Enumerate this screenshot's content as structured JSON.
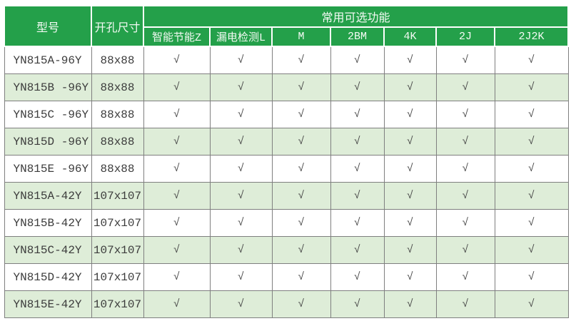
{
  "colors": {
    "header_green": "#24a04a",
    "row_alt_green": "#deedd8",
    "row_white": "#ffffff",
    "border_gray": "#7f7f7f",
    "header_text": "#f4faf4",
    "body_text": "#3c3c3c"
  },
  "table": {
    "header": {
      "model_label": "型号",
      "hole_size_label": "开孔尺寸",
      "features_group_label": "常用可选功能",
      "feature_columns": [
        "智能节能Z",
        "漏电检测L",
        "M",
        "2BM",
        "4K",
        "2J",
        "2J2K"
      ]
    },
    "check_symbol": "√",
    "rows": [
      {
        "model": "YN815A-96Y",
        "hole_size": "88x88",
        "features": [
          "√",
          "√",
          "√",
          "√",
          "√",
          "√",
          "√"
        ]
      },
      {
        "model": "YN815B -96Y",
        "hole_size": "88x88",
        "features": [
          "√",
          "√",
          "√",
          "√",
          "√",
          "√",
          "√"
        ]
      },
      {
        "model": "YN815C -96Y",
        "hole_size": "88x88",
        "features": [
          "√",
          "√",
          "√",
          "√",
          "√",
          "√",
          "√"
        ]
      },
      {
        "model": "YN815D -96Y",
        "hole_size": "88x88",
        "features": [
          "√",
          "√",
          "√",
          "√",
          "√",
          "√",
          "√"
        ]
      },
      {
        "model": "YN815E -96Y",
        "hole_size": "88x88",
        "features": [
          "√",
          "√",
          "√",
          "√",
          "√",
          "√",
          "√"
        ]
      },
      {
        "model": "YN815A-42Y",
        "hole_size": "107x107",
        "features": [
          "√",
          "√",
          "√",
          "√",
          "√",
          "√",
          "√"
        ]
      },
      {
        "model": "YN815B-42Y",
        "hole_size": "107x107",
        "features": [
          "√",
          "√",
          "√",
          "√",
          "√",
          "√",
          "√"
        ]
      },
      {
        "model": "YN815C-42Y",
        "hole_size": "107x107",
        "features": [
          "√",
          "√",
          "√",
          "√",
          "√",
          "√",
          "√"
        ]
      },
      {
        "model": "YN815D-42Y",
        "hole_size": "107x107",
        "features": [
          "√",
          "√",
          "√",
          "√",
          "√",
          "√",
          "√"
        ]
      },
      {
        "model": "YN815E-42Y",
        "hole_size": "107x107",
        "features": [
          "√",
          "√",
          "√",
          "√",
          "√",
          "√",
          "√"
        ]
      }
    ]
  }
}
